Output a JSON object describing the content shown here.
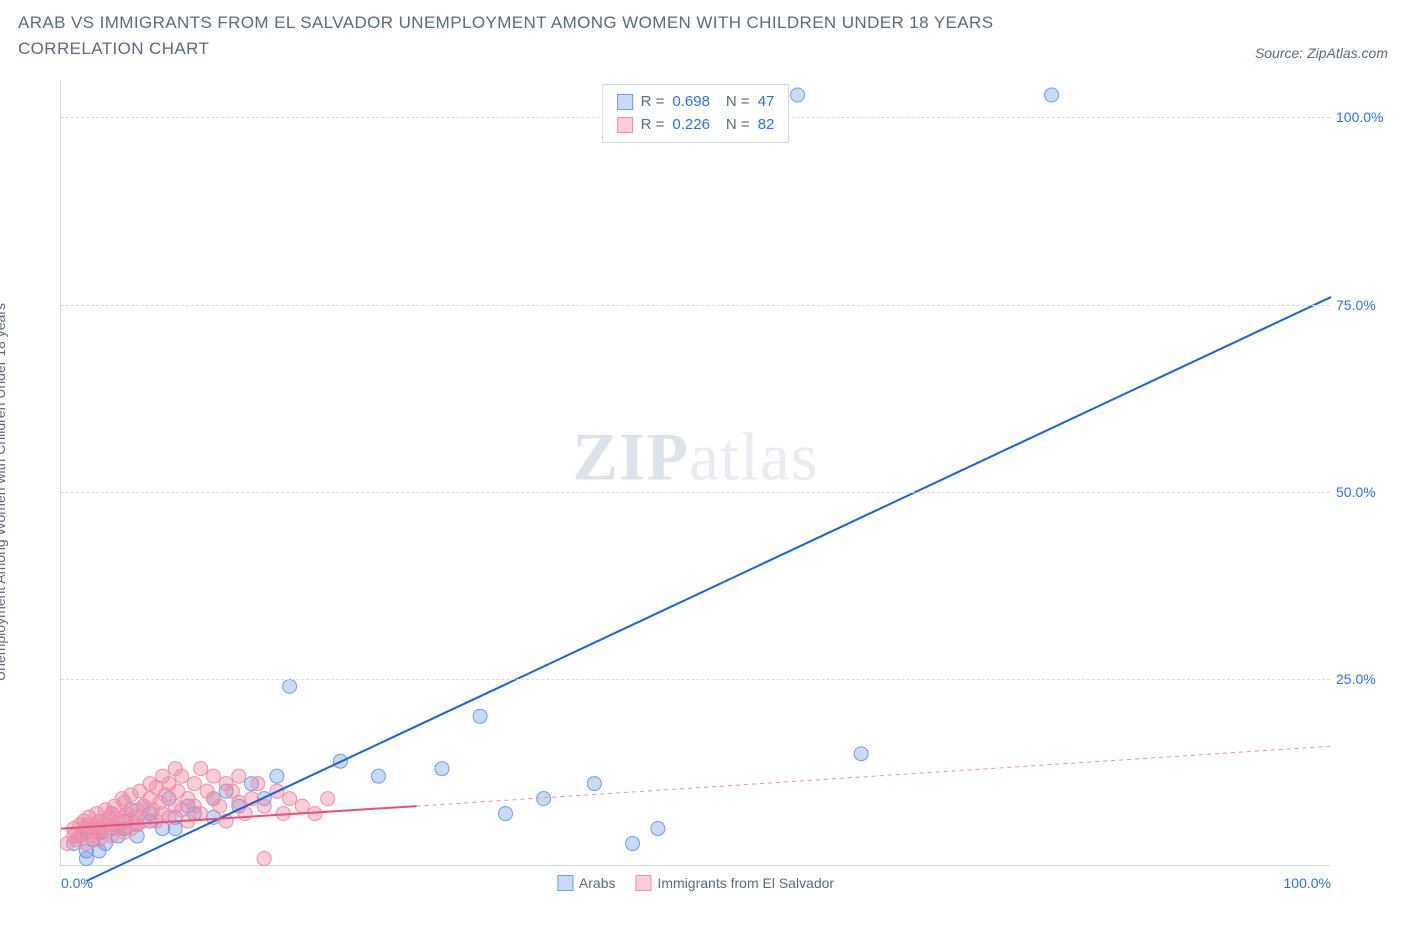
{
  "title": "ARAB VS IMMIGRANTS FROM EL SALVADOR UNEMPLOYMENT AMONG WOMEN WITH CHILDREN UNDER 18 YEARS CORRELATION CHART",
  "source": "Source: ZipAtlas.com",
  "y_axis_label": "Unemployment Among Women with Children Under 18 years",
  "watermark_a": "ZIP",
  "watermark_b": "atlas",
  "chart": {
    "type": "scatter",
    "xlim": [
      0,
      100
    ],
    "ylim": [
      0,
      105
    ],
    "xticks": [
      {
        "v": 0,
        "label": "0.0%"
      },
      {
        "v": 100,
        "label": "100.0%"
      }
    ],
    "yticks": [
      {
        "v": 25,
        "label": "25.0%"
      },
      {
        "v": 50,
        "label": "50.0%"
      },
      {
        "v": 75,
        "label": "75.0%"
      },
      {
        "v": 100,
        "label": "100.0%"
      }
    ],
    "grid_color": "#d8dde3",
    "axis_color": "#cfd6dd",
    "background_color": "#ffffff",
    "marker_radius": 7,
    "series": [
      {
        "name": "Arabs",
        "legend_label": "Arabs",
        "color_fill": "rgba(99,150,233,0.35)",
        "color_stroke": "#6f9de8",
        "R_label": "R =",
        "R": "0.698",
        "N_label": "N =",
        "N": "47",
        "trend": {
          "x1": 2,
          "y1": -2,
          "x2": 100,
          "y2": 76,
          "color": "#1f5fd6",
          "width": 2,
          "dash": ""
        },
        "points": [
          [
            1,
            3
          ],
          [
            1.5,
            4
          ],
          [
            2,
            2
          ],
          [
            2,
            5
          ],
          [
            2.5,
            3.5
          ],
          [
            3,
            4.5
          ],
          [
            3,
            6
          ],
          [
            3.5,
            3
          ],
          [
            4,
            5
          ],
          [
            4,
            7
          ],
          [
            4.5,
            4
          ],
          [
            5,
            6
          ],
          [
            5,
            5
          ],
          [
            5.5,
            7.5
          ],
          [
            6,
            5.5
          ],
          [
            6.5,
            8
          ],
          [
            7,
            6
          ],
          [
            7,
            7
          ],
          [
            8,
            5
          ],
          [
            8.5,
            9
          ],
          [
            9,
            6.5
          ],
          [
            10,
            8
          ],
          [
            10.5,
            7
          ],
          [
            12,
            9
          ],
          [
            13,
            10
          ],
          [
            14,
            8
          ],
          [
            15,
            11
          ],
          [
            16,
            9
          ],
          [
            17,
            12
          ],
          [
            18,
            24
          ],
          [
            22,
            14
          ],
          [
            25,
            12
          ],
          [
            30,
            13
          ],
          [
            33,
            20
          ],
          [
            35,
            7
          ],
          [
            38,
            9
          ],
          [
            42,
            11
          ],
          [
            45,
            3
          ],
          [
            47,
            5
          ],
          [
            63,
            15
          ],
          [
            2,
            1
          ],
          [
            3,
            2
          ],
          [
            6,
            4
          ],
          [
            9,
            5
          ],
          [
            12,
            6.5
          ],
          [
            58,
            103
          ],
          [
            78,
            103
          ]
        ]
      },
      {
        "name": "Immigrants from El Salvador",
        "legend_label": "Immigrants from El Salvador",
        "color_fill": "rgba(244,130,160,0.4)",
        "color_stroke": "#ef8fa9",
        "R_label": "R =",
        "R": "0.226",
        "N_label": "N =",
        "N": "82",
        "trend": {
          "x1": 0,
          "y1": 5,
          "x2": 28,
          "y2": 8,
          "color": "#e8507a",
          "width": 2,
          "dash": ""
        },
        "trend_ext": {
          "x1": 28,
          "y1": 8,
          "x2": 100,
          "y2": 16,
          "color": "#ef8fa9",
          "width": 1,
          "dash": "4,4"
        },
        "points": [
          [
            0.5,
            3
          ],
          [
            1,
            4
          ],
          [
            1,
            5
          ],
          [
            1.2,
            3.5
          ],
          [
            1.5,
            5.5
          ],
          [
            1.5,
            4
          ],
          [
            1.8,
            6
          ],
          [
            2,
            3
          ],
          [
            2,
            4.5
          ],
          [
            2,
            5.5
          ],
          [
            2.2,
            6.5
          ],
          [
            2.5,
            4
          ],
          [
            2.5,
            5
          ],
          [
            2.8,
            7
          ],
          [
            3,
            3.5
          ],
          [
            3,
            5
          ],
          [
            3,
            6
          ],
          [
            3.2,
            4.5
          ],
          [
            3.5,
            7.5
          ],
          [
            3.5,
            5.5
          ],
          [
            3.8,
            6.5
          ],
          [
            4,
            4
          ],
          [
            4,
            5.5
          ],
          [
            4,
            7
          ],
          [
            4.2,
            8
          ],
          [
            4.5,
            5
          ],
          [
            4.5,
            6
          ],
          [
            4.8,
            9
          ],
          [
            5,
            4.5
          ],
          [
            5,
            6.5
          ],
          [
            5,
            8.5
          ],
          [
            5.2,
            7
          ],
          [
            5.5,
            5
          ],
          [
            5.5,
            9.5
          ],
          [
            5.8,
            6.5
          ],
          [
            6,
            7.5
          ],
          [
            6,
            5.5
          ],
          [
            6.2,
            10
          ],
          [
            6.5,
            8
          ],
          [
            6.5,
            6
          ],
          [
            7,
            9
          ],
          [
            7,
            11
          ],
          [
            7.2,
            7.5
          ],
          [
            7.5,
            6
          ],
          [
            7.5,
            10.5
          ],
          [
            7.8,
            8.5
          ],
          [
            8,
            12
          ],
          [
            8,
            7
          ],
          [
            8.2,
            9.5
          ],
          [
            8.5,
            6.5
          ],
          [
            8.5,
            11
          ],
          [
            9,
            8
          ],
          [
            9,
            13
          ],
          [
            9.2,
            10
          ],
          [
            9.5,
            7.5
          ],
          [
            9.5,
            12
          ],
          [
            10,
            9
          ],
          [
            10,
            6
          ],
          [
            10.5,
            11
          ],
          [
            10.5,
            8
          ],
          [
            11,
            13
          ],
          [
            11,
            7
          ],
          [
            11.5,
            10
          ],
          [
            12,
            9
          ],
          [
            12,
            12
          ],
          [
            12.5,
            8
          ],
          [
            13,
            11
          ],
          [
            13,
            6
          ],
          [
            13.5,
            10
          ],
          [
            14,
            8.5
          ],
          [
            14,
            12
          ],
          [
            14.5,
            7
          ],
          [
            15,
            9
          ],
          [
            15.5,
            11
          ],
          [
            16,
            8
          ],
          [
            16,
            1
          ],
          [
            17,
            10
          ],
          [
            17.5,
            7
          ],
          [
            18,
            9
          ],
          [
            19,
            8
          ],
          [
            20,
            7
          ],
          [
            21,
            9
          ]
        ]
      }
    ]
  }
}
